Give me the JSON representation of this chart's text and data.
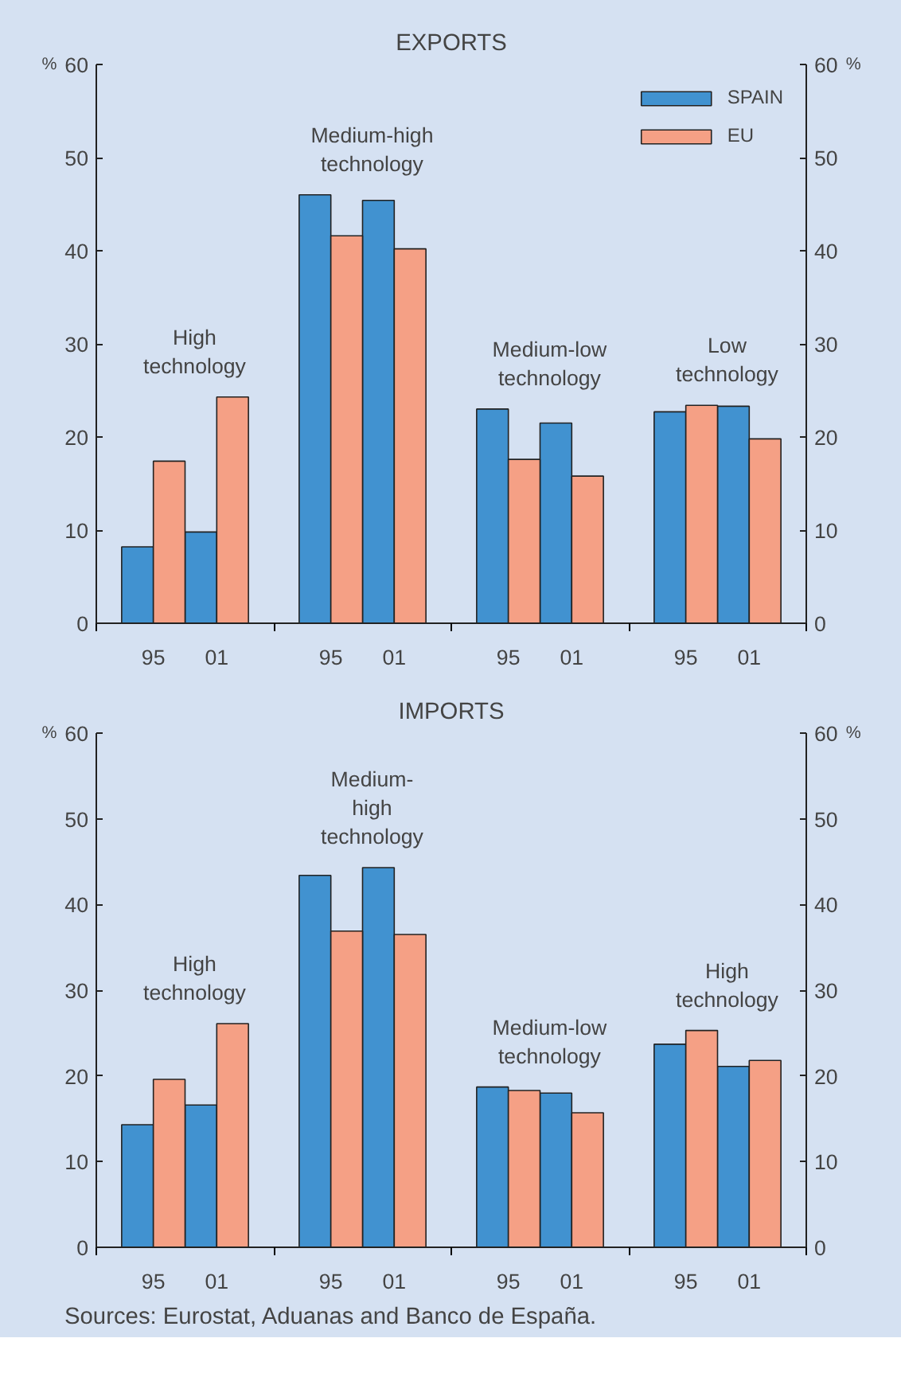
{
  "chart_data": [
    {
      "type": "bar",
      "title": "EXPORTS",
      "ylabel": "%",
      "y2label": "%",
      "categories": [
        "95",
        "01",
        "95",
        "01",
        "95",
        "01",
        "95",
        "01"
      ],
      "series": [
        {
          "name": "SPAIN",
          "color": "#4192d0",
          "values": [
            8.2,
            9.8,
            46.0,
            45.4,
            23.0,
            21.5,
            22.7,
            23.3
          ]
        },
        {
          "name": "EU",
          "color": "#f5a085",
          "values": [
            17.4,
            24.3,
            41.6,
            40.2,
            17.6,
            15.8,
            23.4,
            19.8
          ]
        }
      ],
      "ylim": [
        0,
        60
      ],
      "yticks": [
        0,
        10,
        20,
        30,
        40,
        50,
        60
      ],
      "y2lim": [
        0,
        60
      ],
      "y2ticks": [
        0,
        10,
        20,
        30,
        40,
        50,
        60
      ],
      "grid": false,
      "legend": "top right",
      "annotations": [
        "High\ntechnology",
        "Medium-high\ntechnology",
        "Medium-low\ntechnology",
        "Low\ntechnology"
      ]
    },
    {
      "type": "bar",
      "title": "IMPORTS",
      "ylabel": "%",
      "y2label": "%",
      "categories": [
        "95",
        "01",
        "95",
        "01",
        "95",
        "01",
        "95",
        "01"
      ],
      "series": [
        {
          "color": "#4192d0",
          "values": [
            14.3,
            16.6,
            43.4,
            44.3,
            18.7,
            18.0,
            23.7,
            21.1
          ]
        },
        {
          "color": "#f5a085",
          "values": [
            19.6,
            26.1,
            36.9,
            36.5,
            18.3,
            15.7,
            25.3,
            21.8
          ]
        }
      ],
      "ylim": [
        0,
        60
      ],
      "yticks": [
        0,
        10,
        20,
        30,
        40,
        50,
        60
      ],
      "y2lim": [
        0,
        60
      ],
      "y2ticks": [
        0,
        10,
        20,
        30,
        40,
        50,
        60
      ],
      "grid": false,
      "annotations": [
        "High\ntechnology",
        "Medium-\nhigh\ntechnology",
        "Medium-low\ntechnology",
        "High\ntechnology",
        "Sources: Eurostat, Aduanas and Banco de España."
      ]
    }
  ]
}
